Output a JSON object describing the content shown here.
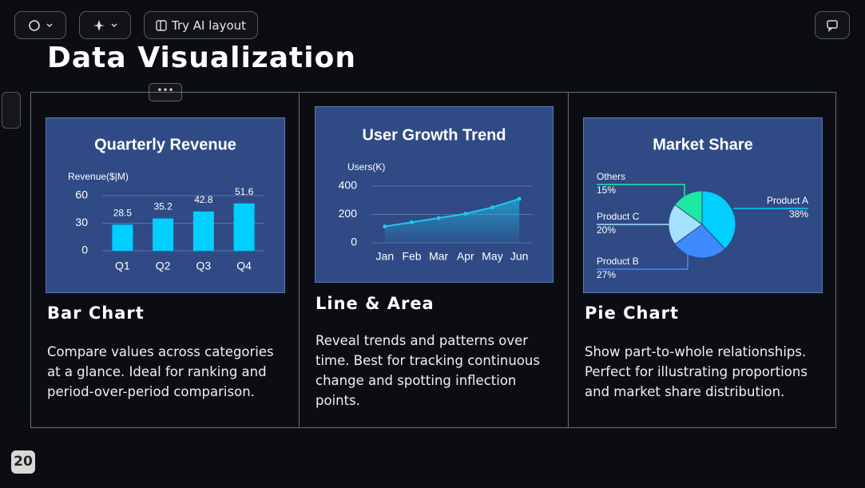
{
  "toolbar": {
    "ai_layout": "Try AI layout"
  },
  "slide": {
    "title": "Data Visualization",
    "page_number": "20"
  },
  "cards": [
    {
      "chart": {
        "type": "bar",
        "title": "Quarterly Revenue",
        "y_label": "Revenue($|M)",
        "categories": [
          "Q1",
          "Q2",
          "Q3",
          "Q4"
        ],
        "values": [
          28.5,
          35.2,
          42.8,
          51.6
        ],
        "color": "#00cfff",
        "ylim": [
          0,
          60
        ],
        "yticks": [
          0,
          30,
          60
        ]
      },
      "heading": "Bar Chart",
      "text": "Compare values across categories at a glance. Ideal for ranking and period-over-period comparison."
    },
    {
      "chart": {
        "type": "line",
        "title": "User Growth Trend",
        "y_label": "Users(K)",
        "categories": [
          "Jan",
          "Feb",
          "Mar",
          "Apr",
          "May",
          "Jun"
        ],
        "values": [
          115,
          145,
          175,
          205,
          250,
          310
        ],
        "color": "#1ec8f0",
        "ylim": [
          0,
          400
        ],
        "yticks": [
          0,
          200,
          400
        ]
      },
      "heading": "Line & Area",
      "text": "Reveal trends and patterns over time. Best for tracking continuous change and spotting inflection points."
    },
    {
      "chart": {
        "type": "pie",
        "title": "Market Share",
        "categories": [
          "Product A",
          "Product B",
          "Product C",
          "Others"
        ],
        "values": [
          38,
          27,
          20,
          15
        ],
        "value_labels": [
          "38%",
          "27%",
          "20%",
          "15%"
        ],
        "colors": [
          "#00cfff",
          "#3d8bff",
          "#a5e0ff",
          "#1de9a0"
        ]
      },
      "heading": "Pie Chart",
      "text": "Show part-to-whole relationships. Perfect for illustrating proportions and market share distribution."
    }
  ]
}
